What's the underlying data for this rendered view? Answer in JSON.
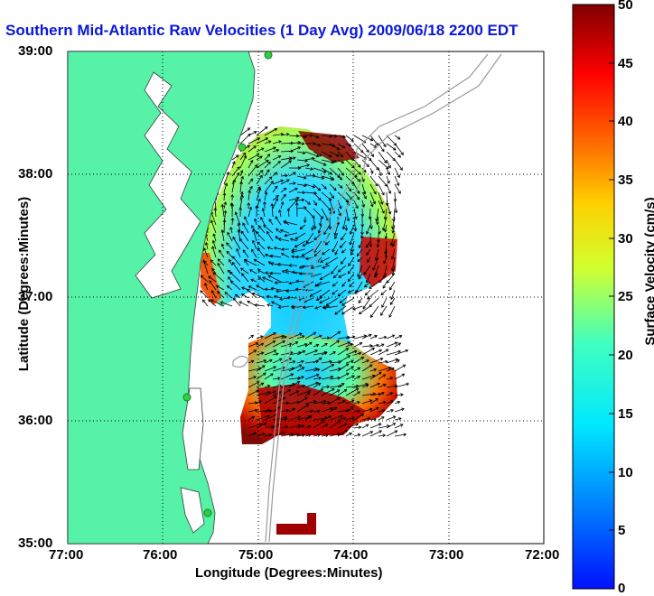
{
  "title": "Southern Mid-Atlantic Raw Velocities (1 Day Avg) 2009/06/18 2200 EDT",
  "xlabel": "Longitude (Degrees:Minutes)",
  "ylabel": "Latitude (Degrees:Minutes)",
  "colorbar_label": "Surface Velocity (cm/s)",
  "x_ticks": [
    "77:00",
    "76:00",
    "75:00",
    "74:00",
    "73:00",
    "72:00"
  ],
  "y_ticks": [
    "39:00",
    "38:00",
    "37:00",
    "36:00",
    "35:00"
  ],
  "cb_ticks": [
    "50",
    "45",
    "40",
    "35",
    "30",
    "25",
    "20",
    "15",
    "10",
    "5",
    "0"
  ],
  "colors": {
    "title": "#0a18d8",
    "land": "#55f2a8",
    "bathymetry": "#9a9a9a",
    "station": "#2fd13f"
  },
  "chart_data": {
    "type": "heatmap",
    "title": "Southern Mid-Atlantic Raw Velocities (1 Day Avg) 2009/06/18 2200 EDT",
    "xlabel": "Longitude (Degrees:Minutes)",
    "ylabel": "Latitude (Degrees:Minutes)",
    "xlim": [
      -77,
      -72
    ],
    "ylim": [
      35,
      39
    ],
    "colorbar": {
      "label": "Surface Velocity (cm/s)",
      "range": [
        0,
        50
      ],
      "colormap": "jet"
    },
    "grid": true
  }
}
